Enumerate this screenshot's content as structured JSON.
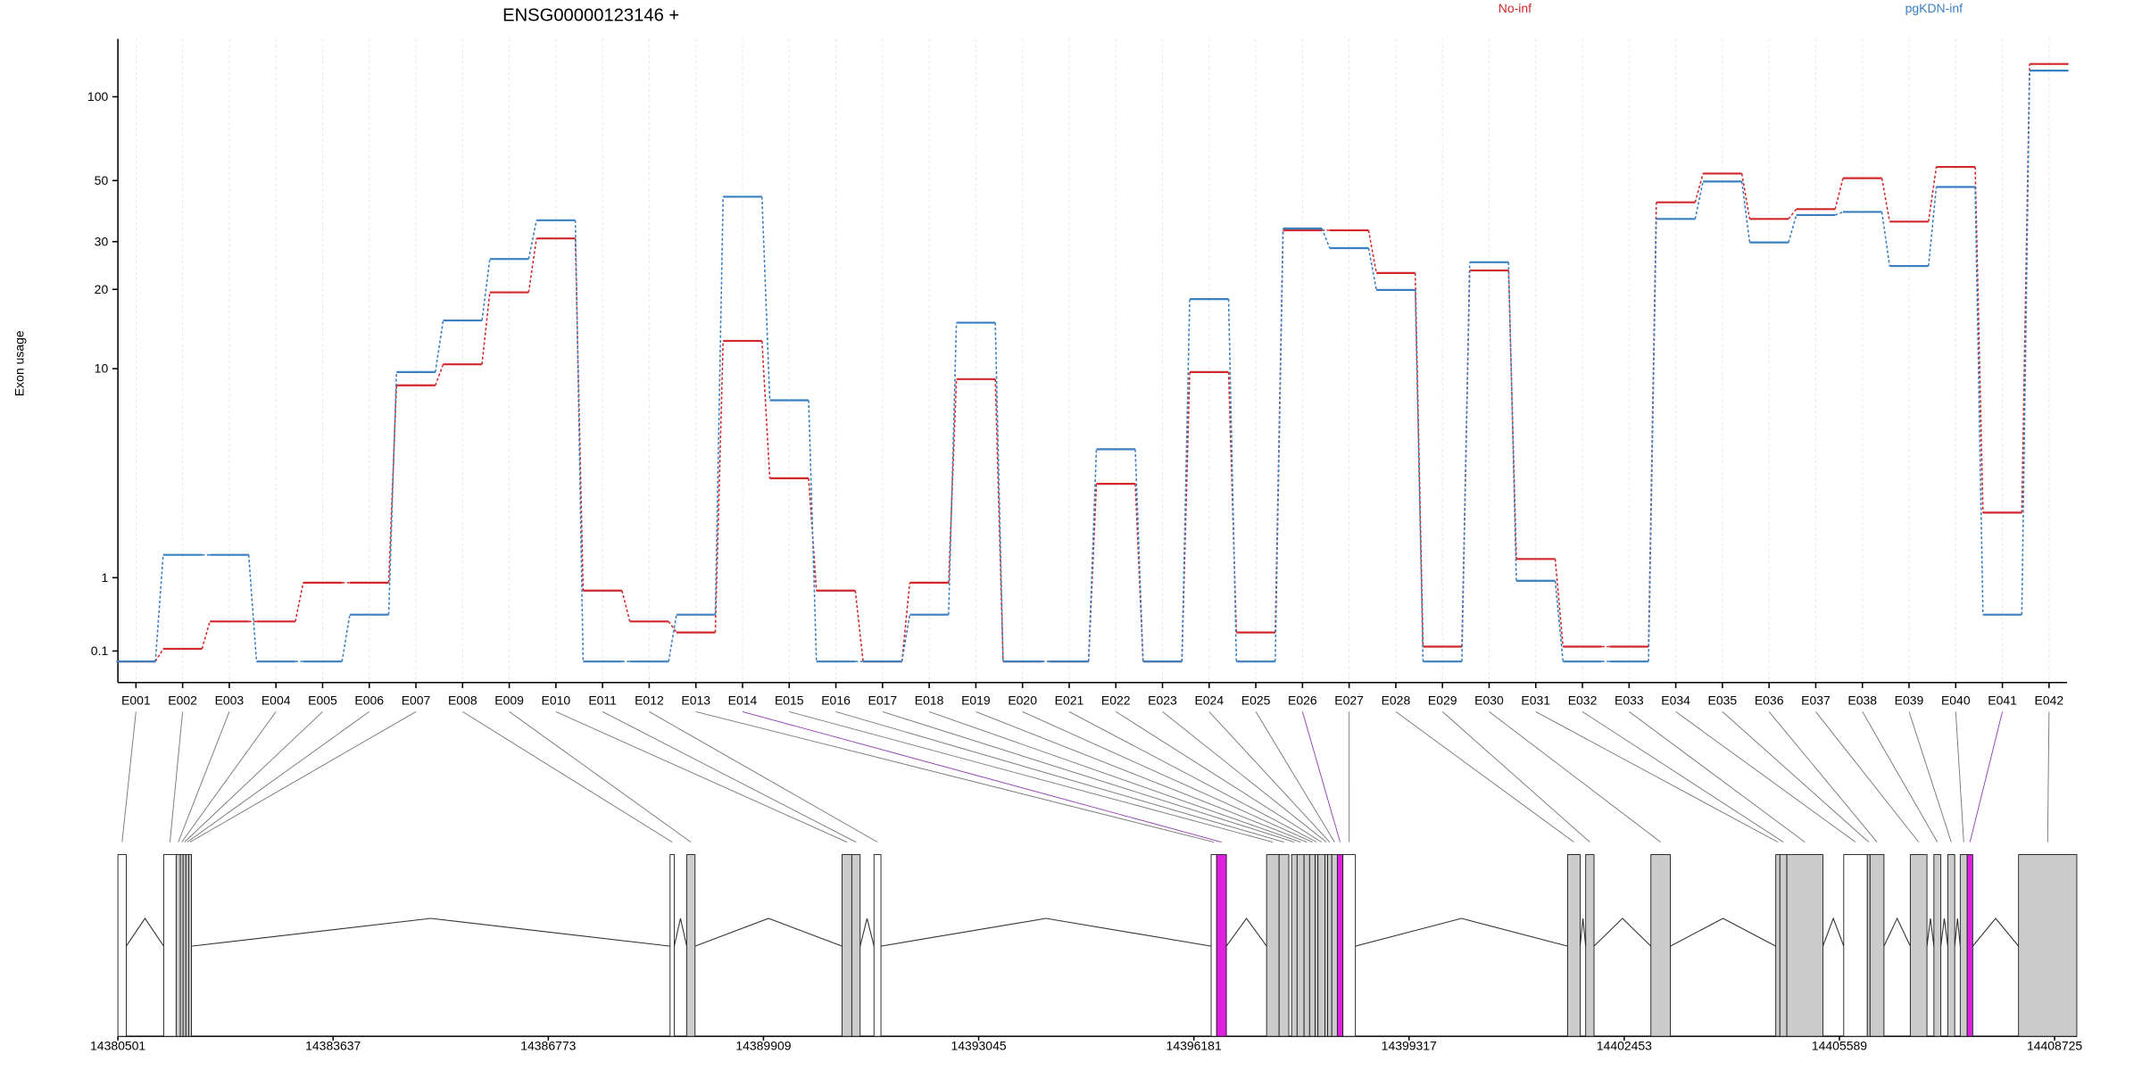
{
  "chart_data": [
    {
      "type": "line",
      "title": "ENSG00000123146 +",
      "y_label": "Exon usage",
      "yscale": "log1p",
      "grid": true,
      "categories": [
        "E001",
        "E002",
        "E003",
        "E004",
        "E005",
        "E006",
        "E007",
        "E008",
        "E009",
        "E010",
        "E011",
        "E012",
        "E013",
        "E014",
        "E015",
        "E016",
        "E017",
        "E018",
        "E019",
        "E020",
        "E021",
        "E022",
        "E023",
        "E024",
        "E025",
        "E026",
        "E027",
        "E028",
        "E029",
        "E030",
        "E031",
        "E032",
        "E033",
        "E034",
        "E035",
        "E036",
        "E037",
        "E038",
        "E039",
        "E040",
        "E041",
        "E042"
      ],
      "series": [
        {
          "name": "No-inf",
          "color": "#d0282b",
          "values": [
            0.01,
            0.12,
            0.4,
            0.4,
            0.92,
            0.92,
            8.6,
            10.4,
            19.5,
            30.8,
            0.8,
            0.4,
            0.28,
            12.8,
            3.5,
            0.8,
            0.01,
            0.92,
            9.1,
            0.01,
            0.01,
            3.3,
            0.01,
            9.7,
            0.28,
            33,
            33,
            23,
            0.14,
            23.5,
            1.33,
            0.14,
            0.14,
            41.7,
            53,
            36.3,
            39.4,
            51,
            35.5,
            56,
            2.4,
            131
          ]
        },
        {
          "name": "pgKDN-inf",
          "color": "#3a7fc1",
          "values": [
            0.01,
            1.41,
            1.41,
            0.01,
            0.01,
            0.48,
            9.7,
            15.3,
            25.9,
            35.9,
            0.01,
            0.01,
            0.48,
            43.7,
            7.5,
            0.01,
            0.01,
            0.48,
            15,
            0.01,
            0.01,
            4.7,
            0.01,
            18.4,
            0.01,
            33.5,
            28.4,
            19.9,
            0.01,
            25.2,
            0.95,
            0.01,
            0.01,
            36.3,
            49.6,
            29.8,
            37.5,
            38.5,
            24.4,
            47.4,
            0.48,
            124
          ]
        }
      ],
      "ylim": [
        -0.13,
        161
      ],
      "yticks": [
        0.1,
        1,
        10,
        20,
        30,
        50,
        100
      ]
    },
    {
      "type": "gene_model",
      "xlim": [
        14380501,
        14408725
      ],
      "xticks": [
        14380501,
        14383637,
        14386773,
        14389909,
        14393045,
        14396181,
        14399317,
        14402453,
        14405589,
        14408725
      ]
    }
  ]
}
